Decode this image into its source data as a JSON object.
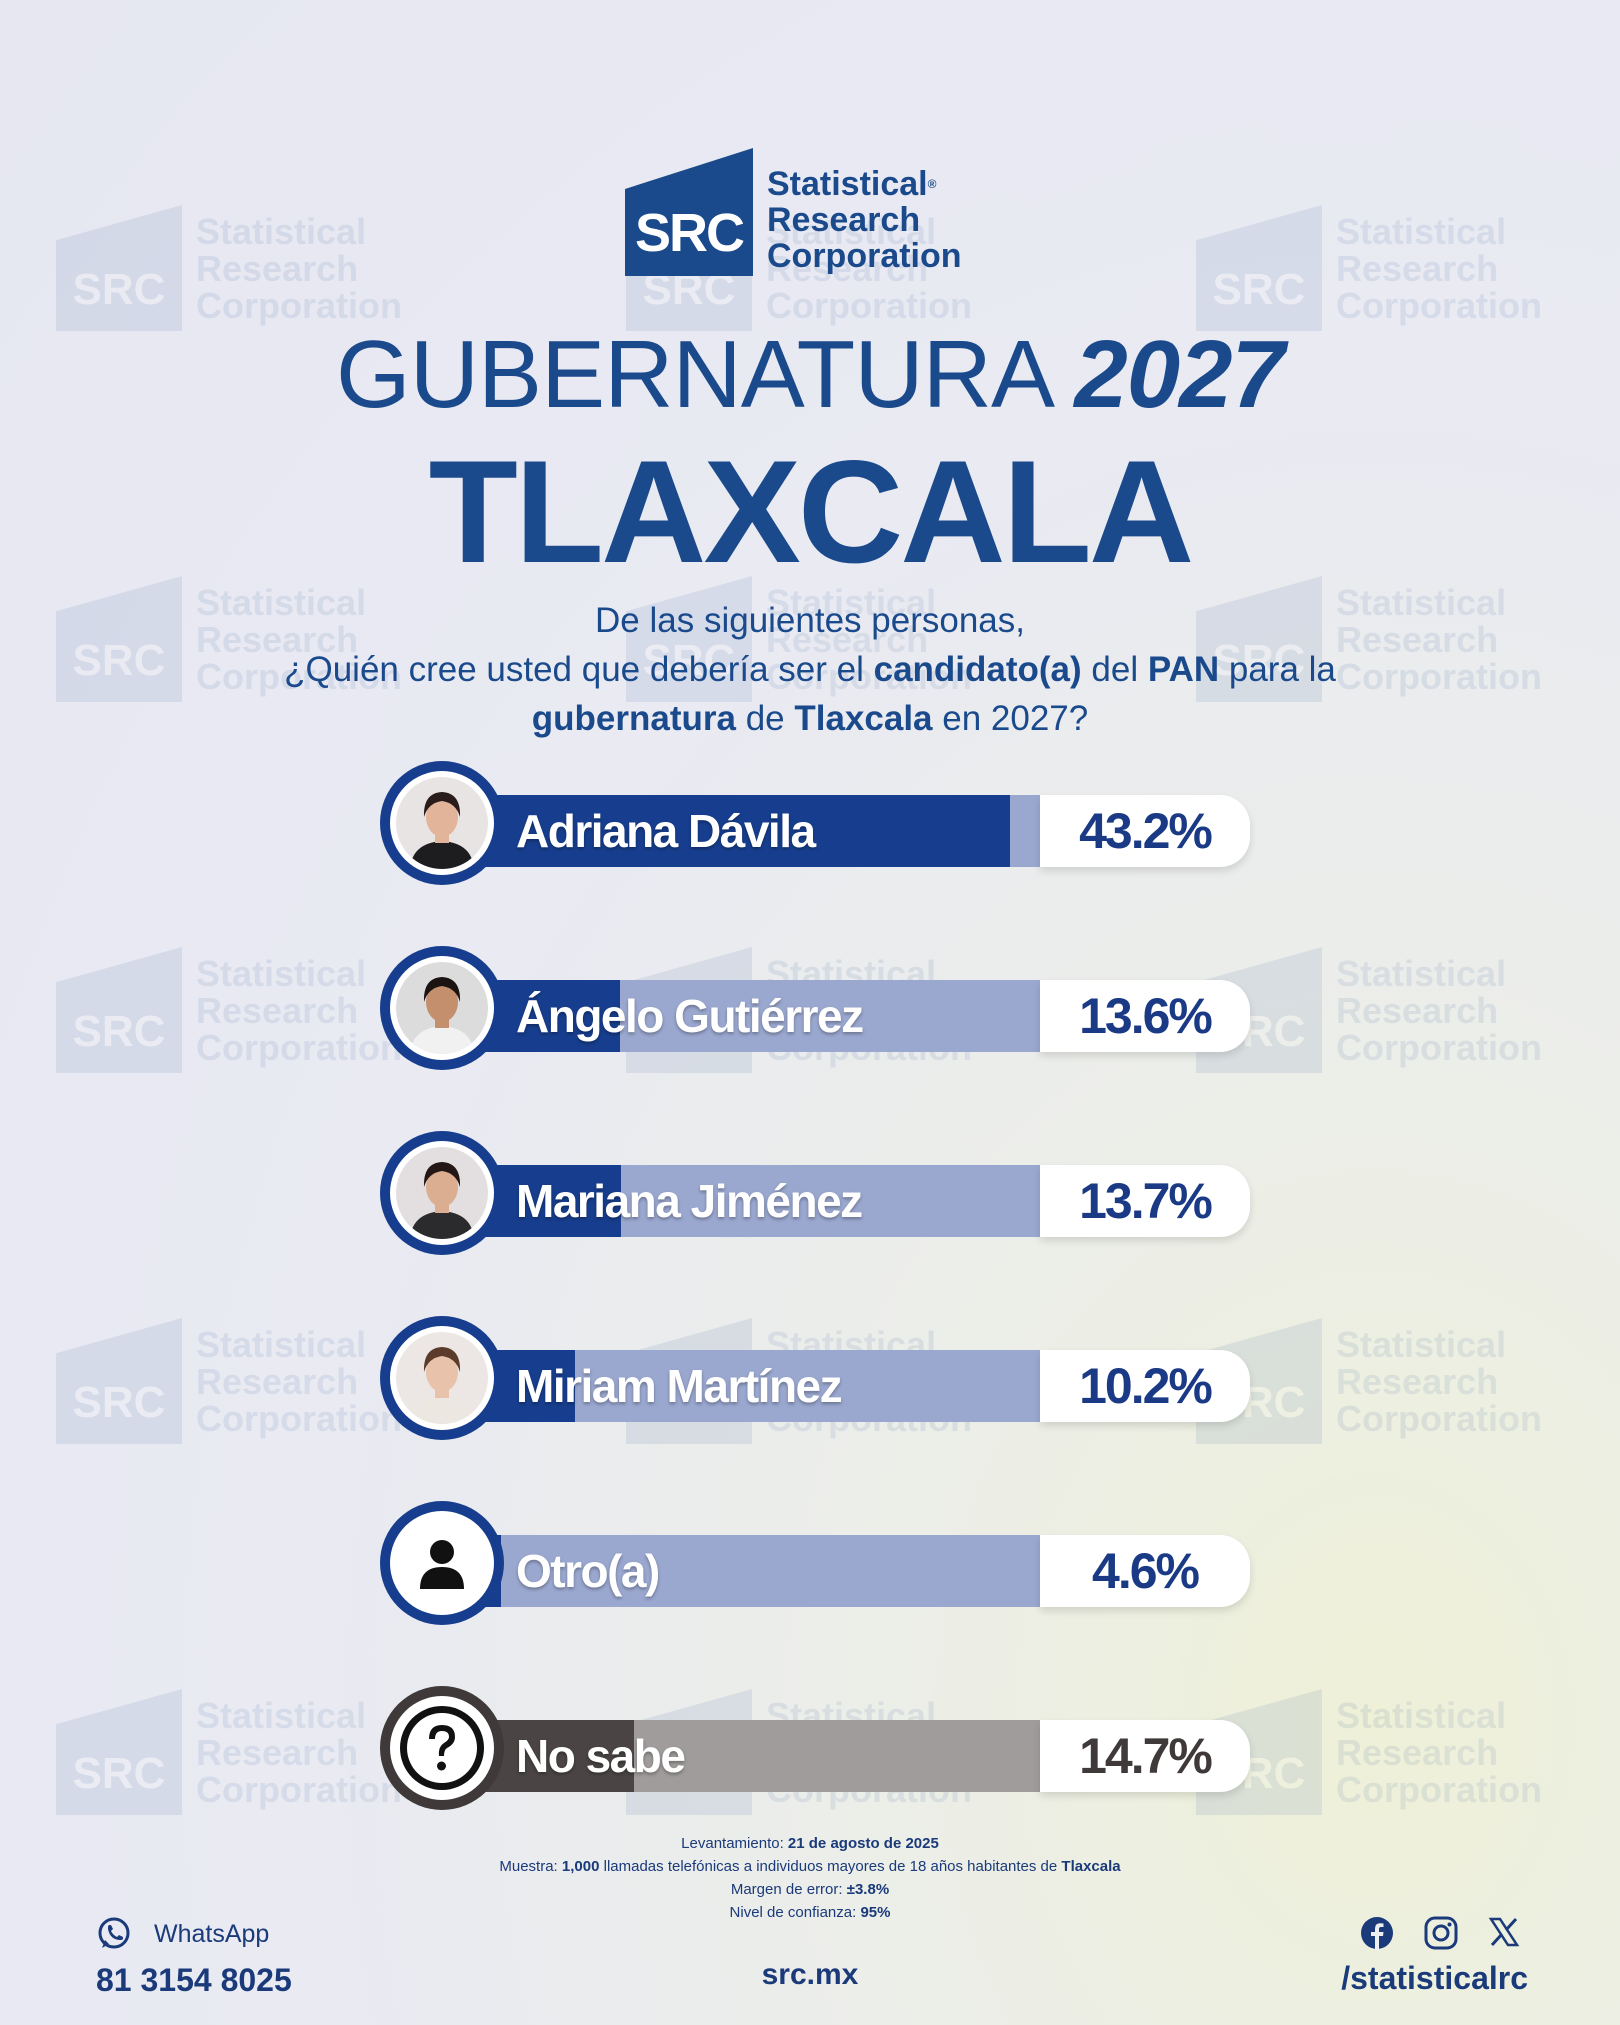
{
  "brand": {
    "logo_mark": "SRC",
    "name_line1": "Statistical",
    "name_line2": "Research",
    "name_line3": "Corporation",
    "color_primary": "#1a4a8c"
  },
  "header": {
    "title_word": "GUBERNATURA",
    "title_year": "2027",
    "subtitle": "TLAXCALA"
  },
  "question": {
    "line1": "De las siguientes personas,",
    "line2_a": "¿Quién cree usted que debería ser el ",
    "line2_b": "candidato(a)",
    "line2_c": " del ",
    "line2_d": "PAN",
    "line2_e": " para la",
    "line3_a": "gubernatura",
    "line3_b": " de ",
    "line3_c": "Tlaxcala",
    "line3_d": " en 2027?"
  },
  "chart_data": {
    "type": "bar",
    "orientation": "horizontal",
    "categories": [
      "Adriana Dávila",
      "Ángelo Gutiérrez",
      "Mariana Jiménez",
      "Miriam Martínez",
      "Otro(a)",
      "No sabe"
    ],
    "values": [
      43.2,
      13.6,
      13.7,
      10.2,
      4.6,
      14.7
    ],
    "value_labels": [
      "43.2%",
      "13.6%",
      "13.7%",
      "10.2%",
      "4.6%",
      "14.7%"
    ],
    "xlim": [
      0,
      50
    ],
    "icons": [
      "person-photo",
      "person-photo",
      "person-photo",
      "person-photo",
      "user-icon",
      "question-icon"
    ],
    "colors": {
      "bar": "#173e8e",
      "track": "#9aa7cf",
      "bar_other": "#4a4544",
      "track_other": "#9f9c9b"
    }
  },
  "methodology": {
    "fecha_label": "Levantamiento: ",
    "fecha_value": "21 de agosto de 2025",
    "muestra_label": "Muestra: ",
    "muestra_n": "1,000",
    "muestra_text": " llamadas telefónicas a individuos mayores de 18 años habitantes de ",
    "muestra_place": "Tlaxcala",
    "margen_label": "Margen de error: ",
    "margen_value": "±3.8%",
    "confianza_label": "Nivel de confianza: ",
    "confianza_value": "95%"
  },
  "footer": {
    "whatsapp_label": "WhatsApp",
    "whatsapp_number": "81 3154 8025",
    "website": "src.mx",
    "social_handle": "/statisticalrc",
    "social_icons": [
      "facebook-icon",
      "instagram-icon",
      "x-icon"
    ]
  }
}
